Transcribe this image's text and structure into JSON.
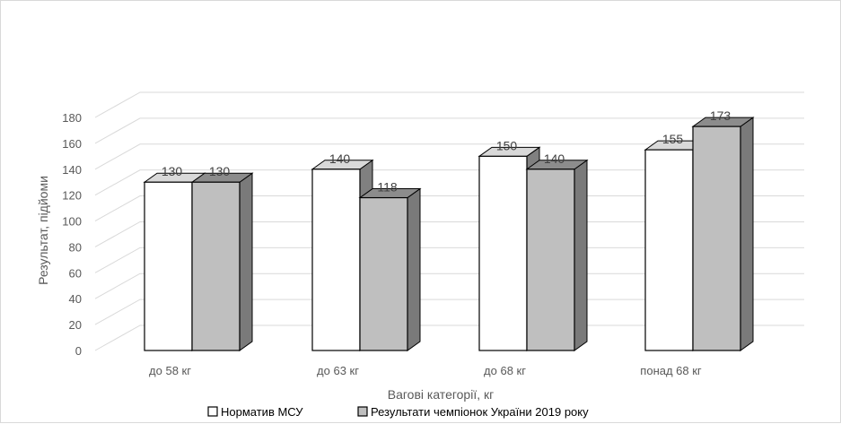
{
  "chart_data": {
    "type": "bar",
    "style": "3d-clustered-column",
    "title": "",
    "xlabel": "Вагові категорії, кг",
    "ylabel": "Результат, підйоми",
    "categories": [
      "до 58 кг",
      "до 63 кг",
      "до 68 кг",
      "понад 68 кг"
    ],
    "series": [
      {
        "name": "Норматив МСУ",
        "values": [
          130,
          140,
          150,
          155
        ],
        "color": "#ffffff"
      },
      {
        "name": "Результати чемпіонок України 2019 року",
        "values": [
          130,
          118,
          140,
          173
        ],
        "color": "#bfbfbf"
      }
    ],
    "ylim": [
      0,
      180
    ],
    "yticks": [
      0,
      20,
      40,
      60,
      80,
      100,
      120,
      140,
      160,
      180
    ],
    "grid": true,
    "legend_position": "bottom"
  }
}
